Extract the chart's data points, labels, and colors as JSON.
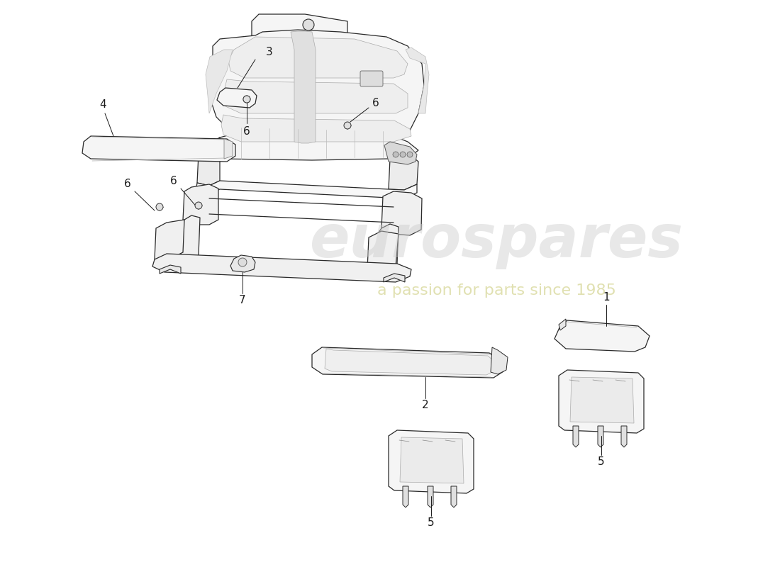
{
  "background_color": "#ffffff",
  "line_color": "#2a2a2a",
  "watermark1": "eurospares",
  "watermark2": "a passion for parts since 1985",
  "wm1_color": "#cccccc",
  "wm2_color": "#d4d490",
  "wm1_alpha": 0.45,
  "wm2_alpha": 0.7,
  "wm1_size": 60,
  "wm2_size": 16,
  "label_size": 11,
  "seat_fill": "#f5f5f5",
  "seat_edge": "#2a2a2a",
  "frame_fill": "#f0f0f0",
  "frame_edge": "#2a2a2a",
  "part_fill": "#f5f5f5",
  "part_edge": "#2a2a2a"
}
